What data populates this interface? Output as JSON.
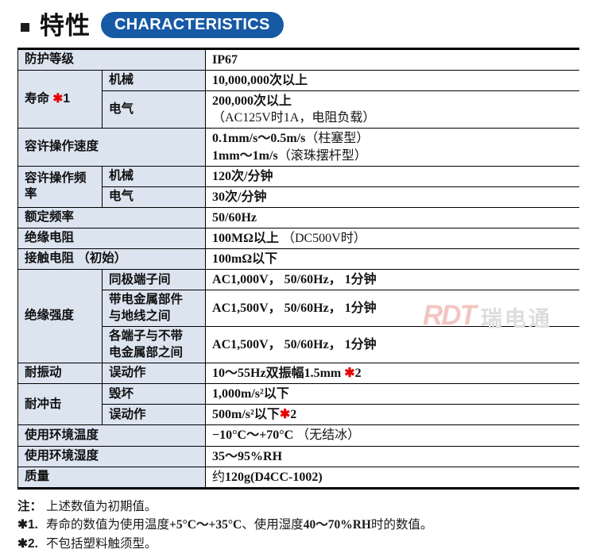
{
  "page": {
    "title": "特性",
    "badge": "CHARACTERISTICS"
  },
  "colors": {
    "badge_blue": "#1659a5",
    "note_red": "#e60000",
    "label_bg": "#dce4f0"
  },
  "table": {
    "rows": [
      {
        "head": {
          "text": "防护等级",
          "full": true
        },
        "value": [
          [
            [
              "IP67",
              1
            ]
          ]
        ]
      },
      {
        "head": {
          "text": "寿命 ✱1",
          "rowspan": 2
        },
        "sub": "机械",
        "value": [
          [
            [
              "10,000,000次以上",
              1
            ]
          ]
        ]
      },
      {
        "sub": "电气",
        "value": [
          [
            [
              "200,000次以上",
              1
            ]
          ],
          [
            [
              "（AC125V时1A，电阻负载）",
              0
            ]
          ]
        ]
      },
      {
        "head": {
          "text": "容许操作速度",
          "full": true
        },
        "value": [
          [
            [
              "0.1mm/s～0.5m/s",
              1
            ],
            [
              "（柱塞型）",
              0
            ]
          ],
          [
            [
              "1mm～1m/s",
              1
            ],
            [
              "（滚珠摆杆型）",
              0
            ]
          ]
        ]
      },
      {
        "head": {
          "text": "容许操作频率",
          "rowspan": 2
        },
        "sub": "机械",
        "value": [
          [
            [
              "120次/分钟",
              1
            ]
          ]
        ]
      },
      {
        "sub": "电气",
        "value": [
          [
            [
              "30次/分钟",
              1
            ]
          ]
        ]
      },
      {
        "head": {
          "text": "额定频率",
          "full": true
        },
        "value": [
          [
            [
              "50/60Hz",
              1
            ]
          ]
        ]
      },
      {
        "head": {
          "text": "绝缘电阻",
          "full": true
        },
        "value": [
          [
            [
              "100MΩ以上",
              1
            ],
            [
              " （DC500V时）",
              0
            ]
          ]
        ]
      },
      {
        "head": {
          "text": "接触电阻 （初始）",
          "full": true
        },
        "value": [
          [
            [
              "100mΩ以下",
              1
            ]
          ]
        ]
      },
      {
        "head": {
          "text": "绝缘强度",
          "rowspan": 3
        },
        "sub": "同极端子间",
        "value": [
          [
            [
              "AC1,000V， 50/60Hz， 1分钟",
              1
            ]
          ]
        ]
      },
      {
        "sub": "带电金属部件\n与地线之间",
        "value": [
          [
            [
              "AC1,500V， 50/60Hz， 1分钟",
              1
            ]
          ]
        ]
      },
      {
        "sub": "各端子与不带\n电金属部之间",
        "value": [
          [
            [
              "AC1,500V， 50/60Hz， 1分钟",
              1
            ]
          ]
        ]
      },
      {
        "head": {
          "text": "耐振动"
        },
        "sub": "误动作",
        "value": [
          [
            [
              "10～55Hz双振幅1.5mm ✱2",
              1
            ]
          ]
        ]
      },
      {
        "head": {
          "text": "耐冲击",
          "rowspan": 2
        },
        "sub": "毁坏",
        "value": [
          [
            [
              "1,000m/s²以下",
              1
            ]
          ]
        ]
      },
      {
        "sub": "误动作",
        "value": [
          [
            [
              "500m/s²以下✱2",
              1
            ]
          ]
        ]
      },
      {
        "head": {
          "text": "使用环境温度",
          "full": true
        },
        "value": [
          [
            [
              "−10°C～+70°C",
              1
            ],
            [
              " （无结冰）",
              0
            ]
          ]
        ]
      },
      {
        "head": {
          "text": "使用环境湿度",
          "full": true
        },
        "value": [
          [
            [
              "35～95%RH",
              1
            ]
          ]
        ]
      },
      {
        "head": {
          "text": "质量",
          "full": true
        },
        "value": [
          [
            [
              "约",
              0
            ],
            [
              "120g(D4CC-1002)",
              1
            ]
          ]
        ]
      }
    ]
  },
  "notes": [
    {
      "marker": "注：",
      "segments": [
        [
          "上述数值为初期值。",
          0
        ]
      ]
    },
    {
      "marker": "✱1.",
      "segments": [
        [
          "寿命的数值为使用温度",
          0
        ],
        [
          "+5°C～+35°C",
          1
        ],
        [
          "、使用湿度",
          0
        ],
        [
          "40～70%RH",
          1
        ],
        [
          "时的数值。",
          0
        ]
      ]
    },
    {
      "marker": "✱2.",
      "segments": [
        [
          "不包括塑料触须型。",
          0
        ]
      ]
    }
  ],
  "watermark": {
    "logo": "RDT",
    "text": "瑞电通"
  }
}
